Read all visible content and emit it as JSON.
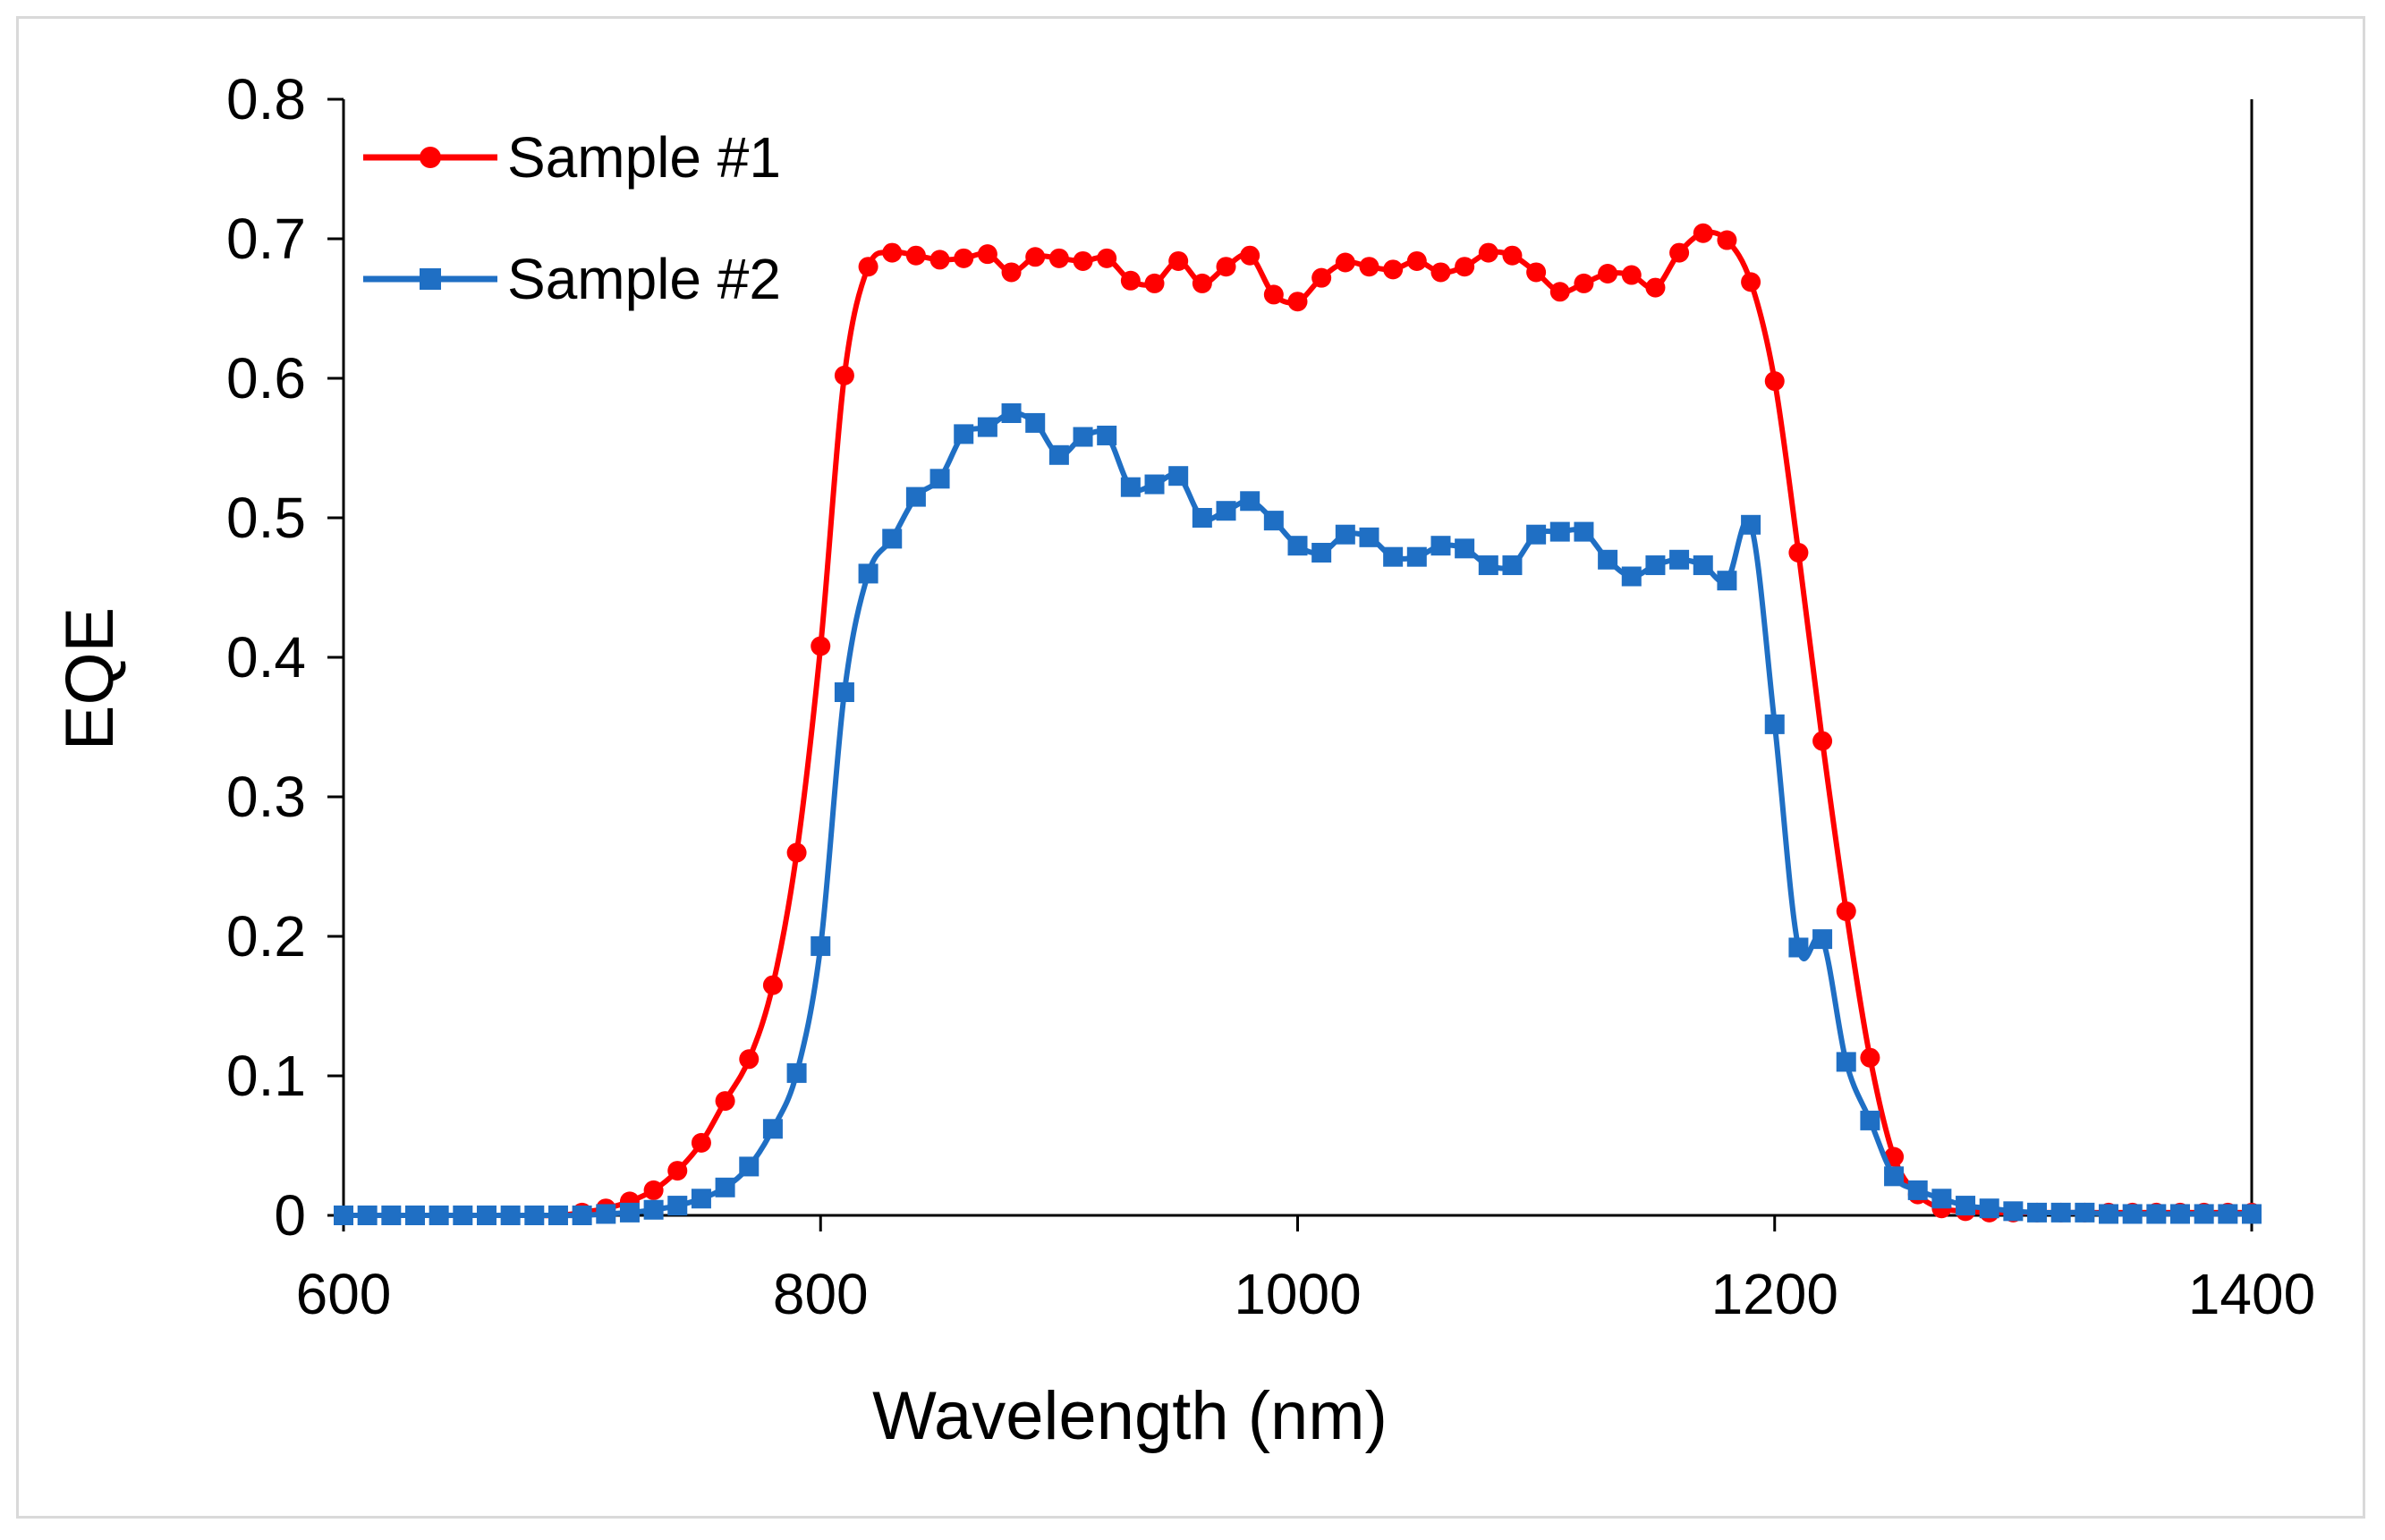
{
  "chart_data": {
    "type": "line",
    "title": "",
    "xlabel": "Wavelength (nm)",
    "ylabel": "EQE",
    "xlim": [
      600,
      1400
    ],
    "ylim": [
      0,
      0.8
    ],
    "xticks": [
      600,
      800,
      1000,
      1200,
      1400
    ],
    "xtick_labels": [
      "600",
      "800",
      "1000",
      "1200",
      "1400"
    ],
    "yticks": [
      0,
      0.1,
      0.2,
      0.3,
      0.4,
      0.5,
      0.6,
      0.7,
      0.8
    ],
    "ytick_labels": [
      "0",
      "0.1",
      "0.2",
      "0.3",
      "0.4",
      "0.5",
      "0.6",
      "0.7",
      "0.8"
    ],
    "grid": false,
    "legend": "top-left",
    "series": [
      {
        "name": "Sample #1",
        "label": "Sample #1",
        "color": "#ff0000",
        "marker": "circle",
        "x": [
          600,
          610,
          620,
          630,
          640,
          650,
          660,
          670,
          680,
          690,
          700,
          710,
          720,
          730,
          740,
          750,
          760,
          770,
          780,
          790,
          800,
          810,
          820,
          830,
          840,
          850,
          860,
          870,
          880,
          890,
          900,
          910,
          920,
          930,
          940,
          950,
          960,
          970,
          980,
          990,
          1000,
          1010,
          1020,
          1030,
          1040,
          1050,
          1060,
          1070,
          1080,
          1090,
          1100,
          1110,
          1120,
          1130,
          1140,
          1150,
          1160,
          1170,
          1180,
          1190,
          1200,
          1210,
          1220,
          1230,
          1240,
          1250,
          1260,
          1270,
          1280,
          1290,
          1300,
          1310,
          1320,
          1330,
          1340,
          1350,
          1360,
          1370,
          1380,
          1390,
          1400
        ],
        "y": [
          0,
          0,
          0,
          0,
          0,
          0,
          0,
          0,
          0,
          0,
          0.002,
          0.005,
          0.01,
          0.018,
          0.032,
          0.052,
          0.082,
          0.112,
          0.165,
          0.26,
          0.408,
          0.602,
          0.68,
          0.69,
          0.688,
          0.685,
          0.686,
          0.689,
          0.676,
          0.687,
          0.686,
          0.684,
          0.686,
          0.67,
          0.668,
          0.684,
          0.668,
          0.68,
          0.688,
          0.66,
          0.655,
          0.672,
          0.683,
          0.68,
          0.678,
          0.684,
          0.676,
          0.68,
          0.69,
          0.688,
          0.676,
          0.662,
          0.668,
          0.675,
          0.674,
          0.665,
          0.69,
          0.704,
          0.699,
          0.669,
          0.598,
          0.475,
          0.34,
          0.218,
          0.113,
          0.042,
          0.015,
          0.005,
          0.003,
          0.002,
          0.002,
          0.002,
          0.002,
          0.002,
          0.002,
          0.002,
          0.002,
          0.002,
          0.002,
          0.002,
          0.002
        ]
      },
      {
        "name": "Sample #2",
        "label": "Sample #2",
        "color": "#1f6fc4",
        "marker": "square",
        "x": [
          600,
          610,
          620,
          630,
          640,
          650,
          660,
          670,
          680,
          690,
          700,
          710,
          720,
          730,
          740,
          750,
          760,
          770,
          780,
          790,
          800,
          810,
          820,
          830,
          840,
          850,
          860,
          870,
          880,
          890,
          900,
          910,
          920,
          930,
          940,
          950,
          960,
          970,
          980,
          990,
          1000,
          1010,
          1020,
          1030,
          1040,
          1050,
          1060,
          1070,
          1080,
          1090,
          1100,
          1110,
          1120,
          1130,
          1140,
          1150,
          1160,
          1170,
          1180,
          1190,
          1200,
          1210,
          1220,
          1230,
          1240,
          1250,
          1260,
          1270,
          1280,
          1290,
          1300,
          1310,
          1320,
          1330,
          1340,
          1350,
          1360,
          1370,
          1380,
          1390,
          1400
        ],
        "y": [
          0,
          0,
          0,
          0,
          0,
          0,
          0,
          0,
          0,
          0,
          0,
          0.001,
          0.002,
          0.004,
          0.007,
          0.012,
          0.02,
          0.035,
          0.062,
          0.102,
          0.193,
          0.375,
          0.46,
          0.485,
          0.515,
          0.528,
          0.56,
          0.565,
          0.575,
          0.568,
          0.545,
          0.558,
          0.559,
          0.522,
          0.524,
          0.53,
          0.5,
          0.505,
          0.512,
          0.498,
          0.48,
          0.475,
          0.488,
          0.486,
          0.472,
          0.472,
          0.48,
          0.478,
          0.466,
          0.466,
          0.488,
          0.49,
          0.49,
          0.47,
          0.458,
          0.466,
          0.47,
          0.466,
          0.455,
          0.495,
          0.352,
          0.192,
          0.198,
          0.11,
          0.068,
          0.028,
          0.018,
          0.012,
          0.007,
          0.005,
          0.003,
          0.002,
          0.002,
          0.002,
          0.001,
          0.001,
          0.001,
          0.001,
          0.001,
          0.001,
          0.001
        ]
      }
    ]
  }
}
